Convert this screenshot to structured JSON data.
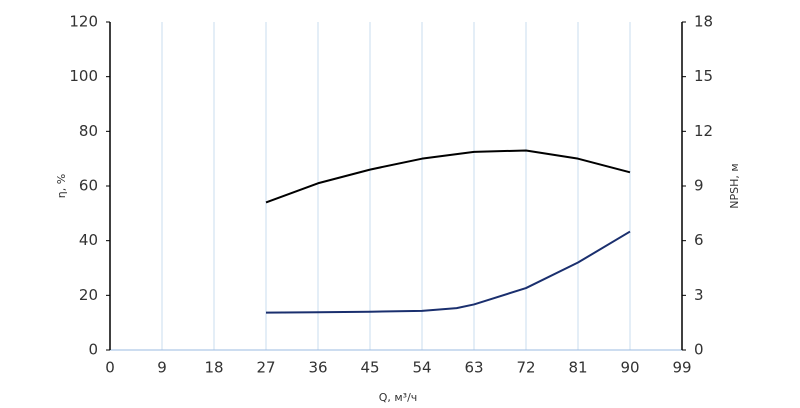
{
  "chart_data": {
    "type": "line",
    "x_label": "Q, м³/ч",
    "y_label": "η, %",
    "y2_label": "NPSH, м",
    "xlim": [
      0,
      99
    ],
    "xticks": [
      0,
      9,
      18,
      27,
      36,
      45,
      54,
      63,
      72,
      81,
      90,
      99
    ],
    "ylim": [
      0,
      120
    ],
    "yticks": [
      0,
      20,
      40,
      60,
      80,
      100,
      120
    ],
    "y2lim": [
      0,
      18
    ],
    "y2ticks": [
      0,
      3,
      6,
      9,
      12,
      15,
      18
    ],
    "grid": true,
    "series": [
      {
        "name": "η",
        "color": "#000000",
        "x": [
          27,
          36,
          45,
          54,
          63,
          72,
          81,
          90
        ],
        "values": [
          54,
          61,
          66,
          70,
          72.5,
          73,
          70,
          65
        ]
      },
      {
        "name": "NPSH",
        "color": "#1a2f6e",
        "axis": "y2",
        "x": [
          27,
          36,
          45,
          54,
          60,
          63,
          65,
          72,
          81,
          90
        ],
        "values": [
          2.05,
          2.07,
          2.1,
          2.15,
          2.3,
          2.5,
          2.7,
          3.4,
          4.8,
          6.5
        ]
      }
    ]
  }
}
